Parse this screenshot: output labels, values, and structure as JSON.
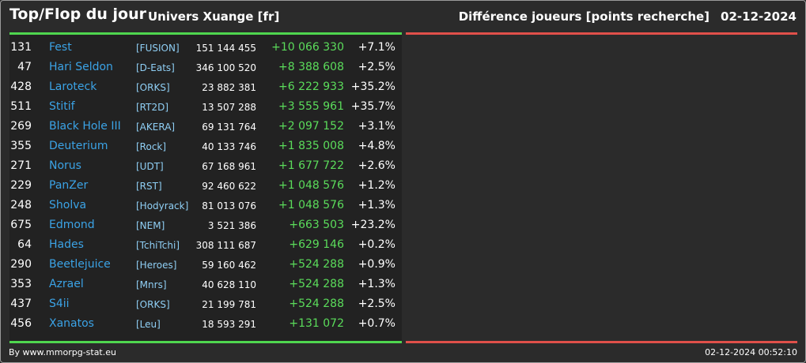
{
  "header": {
    "title": "Top/Flop du jour",
    "subtitle": "Univers Xuange [fr]",
    "category": "Différence joueurs [points recherche]",
    "date": "02-12-2024"
  },
  "colors": {
    "top_bar": "#4fd64f",
    "flop_bar": "#e0504a",
    "name_link": "#3ba3e6",
    "alliance": "#8fcff5",
    "positive_diff": "#5bdc5b"
  },
  "top": [
    {
      "rank": "131",
      "name": "Fest",
      "alliance": "[FUSION]",
      "points": "151 144 455",
      "diff": "+10 066 330",
      "pct": "+7.1%"
    },
    {
      "rank": "47",
      "name": "Hari Seldon",
      "alliance": "[D-Eats]",
      "points": "346 100 520",
      "diff": "+8 388 608",
      "pct": "+2.5%"
    },
    {
      "rank": "428",
      "name": "Laroteck",
      "alliance": "[ORKS]",
      "points": "23 882 381",
      "diff": "+6 222 933",
      "pct": "+35.2%"
    },
    {
      "rank": "511",
      "name": "Stitif",
      "alliance": "[RT2D]",
      "points": "13 507 288",
      "diff": "+3 555 961",
      "pct": "+35.7%"
    },
    {
      "rank": "269",
      "name": "Black Hole III",
      "alliance": "[AKERA]",
      "points": "69 131 764",
      "diff": "+2 097 152",
      "pct": "+3.1%"
    },
    {
      "rank": "355",
      "name": "Deuterium",
      "alliance": "[Rock]",
      "points": "40 133 746",
      "diff": "+1 835 008",
      "pct": "+4.8%"
    },
    {
      "rank": "271",
      "name": "Norus",
      "alliance": "[UDT]",
      "points": "67 168 961",
      "diff": "+1 677 722",
      "pct": "+2.6%"
    },
    {
      "rank": "229",
      "name": "PanZer",
      "alliance": "[RST]",
      "points": "92 460 622",
      "diff": "+1 048 576",
      "pct": "+1.2%"
    },
    {
      "rank": "248",
      "name": "Sholva",
      "alliance": "[Hodyrack]",
      "points": "81 013 076",
      "diff": "+1 048 576",
      "pct": "+1.3%"
    },
    {
      "rank": "675",
      "name": "Edmond",
      "alliance": "[NEM]",
      "points": "3 521 386",
      "diff": "+663 503",
      "pct": "+23.2%"
    },
    {
      "rank": "64",
      "name": "Hades",
      "alliance": "[TchiTchi]",
      "points": "308 111 687",
      "diff": "+629 146",
      "pct": "+0.2%"
    },
    {
      "rank": "290",
      "name": "Beetlejuice",
      "alliance": "[Heroes]",
      "points": "59 160 462",
      "diff": "+524 288",
      "pct": "+0.9%"
    },
    {
      "rank": "353",
      "name": "Azrael",
      "alliance": "[Mnrs]",
      "points": "40 628 110",
      "diff": "+524 288",
      "pct": "+1.3%"
    },
    {
      "rank": "437",
      "name": "S4ii",
      "alliance": "[ORKS]",
      "points": "21 199 781",
      "diff": "+524 288",
      "pct": "+2.5%"
    },
    {
      "rank": "456",
      "name": "Xanatos",
      "alliance": "[Leu]",
      "points": "18 593 291",
      "diff": "+131 072",
      "pct": "+0.7%"
    }
  ],
  "footer": {
    "credit": "By www.mmorpg-stat.eu",
    "timestamp": "02-12-2024 00:52:10"
  }
}
